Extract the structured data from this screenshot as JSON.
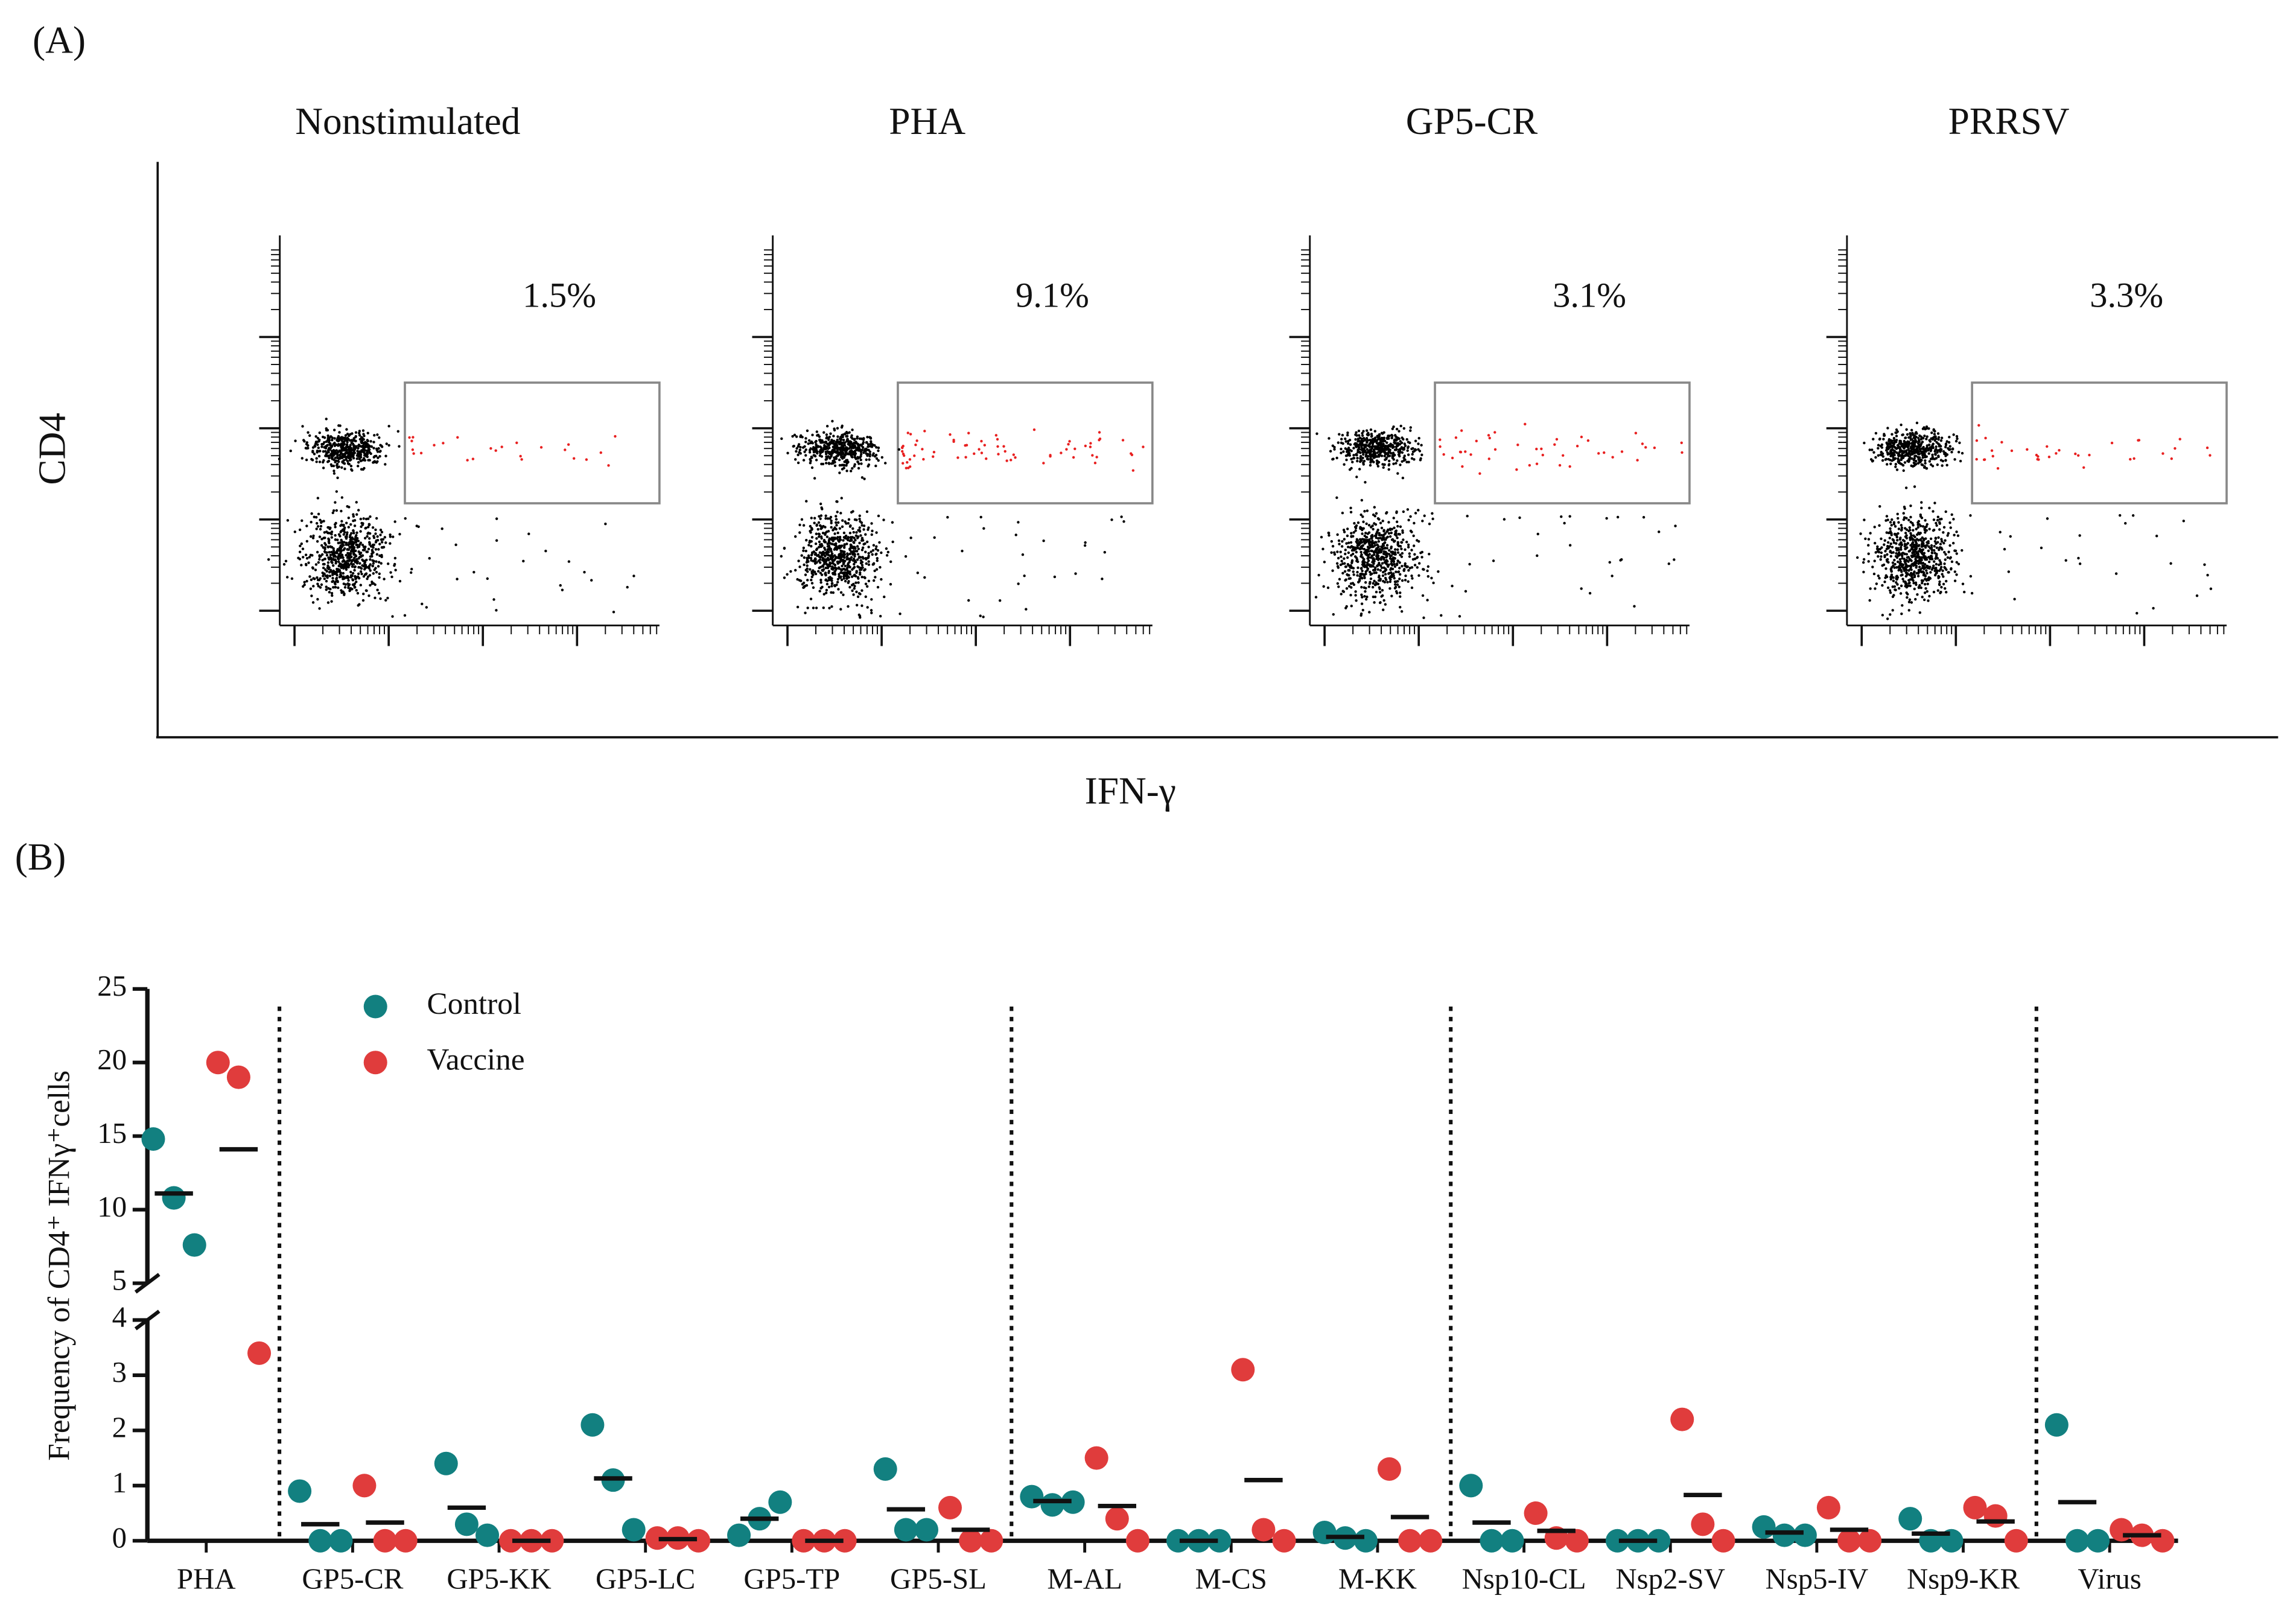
{
  "label_a": "(A)",
  "label_b": "(B)",
  "panels": [
    {
      "title": "Nonstimulated",
      "percent": "1.5%"
    },
    {
      "title": "PHA",
      "percent": "9.1%"
    },
    {
      "title": "GP5-CR",
      "percent": "3.1%"
    },
    {
      "title": "PRRSV",
      "percent": "3.3%"
    }
  ],
  "y_label": "CD4",
  "x_label": "IFN-γ",
  "chart_data": {
    "type": "dot",
    "y_label": "Frequency of CD4⁺ IFNγ⁺cells",
    "categories": [
      "PHA",
      "GP5-CR",
      "GP5-KK",
      "GP5-LC",
      "GP5-TP",
      "GP5-SL",
      "M-AL",
      "M-CS",
      "M-KK",
      "Nsp10-CL",
      "Nsp2-SV",
      "Nsp5-IV",
      "Nsp9-KR",
      "Virus"
    ],
    "series": [
      {
        "name": "Control",
        "color": "#128080",
        "values": [
          [
            14.8,
            10.8,
            7.6
          ],
          [
            0.9,
            0,
            0
          ],
          [
            1.4,
            0.3,
            0.1
          ],
          [
            2.1,
            1.1,
            0.2
          ],
          [
            0.1,
            0.4,
            0.7
          ],
          [
            1.3,
            0.2,
            0.2
          ],
          [
            0.8,
            0.65,
            0.7
          ],
          [
            0,
            0,
            0
          ],
          [
            0.15,
            0.05,
            0
          ],
          [
            1.0,
            0,
            0
          ],
          [
            0,
            0,
            0
          ],
          [
            0.25,
            0.1,
            0.1
          ],
          [
            0.4,
            0,
            0
          ],
          [
            2.1,
            0,
            0
          ]
        ],
        "means": [
          11.1,
          0.3,
          0.6,
          1.13,
          0.4,
          0.57,
          0.72,
          0,
          0.07,
          0.33,
          0,
          0.15,
          0.13,
          0.7
        ]
      },
      {
        "name": "Vaccine",
        "color": "#e03c3c",
        "values": [
          [
            20,
            19,
            3.4
          ],
          [
            1.0,
            0,
            0
          ],
          [
            0,
            0,
            0
          ],
          [
            0.05,
            0.05,
            0
          ],
          [
            0,
            0,
            0
          ],
          [
            0.6,
            0,
            0
          ],
          [
            1.5,
            0.4,
            0
          ],
          [
            3.1,
            0.2,
            0
          ],
          [
            1.3,
            0,
            0
          ],
          [
            0.5,
            0.05,
            0
          ],
          [
            2.2,
            0.3,
            0
          ],
          [
            0.6,
            0,
            0
          ],
          [
            0.6,
            0.45,
            0
          ],
          [
            0.2,
            0.1,
            0
          ]
        ],
        "means": [
          14.1,
          0.33,
          0,
          0.03,
          0,
          0.2,
          0.63,
          1.1,
          0.43,
          0.18,
          0.83,
          0.2,
          0.35,
          0.1
        ]
      }
    ],
    "ylim": [
      0,
      25
    ],
    "ybreak": [
      4,
      5
    ],
    "yticks": [
      0,
      1,
      2,
      3,
      4,
      5,
      10,
      15,
      20,
      25
    ],
    "legend": "top-left"
  }
}
